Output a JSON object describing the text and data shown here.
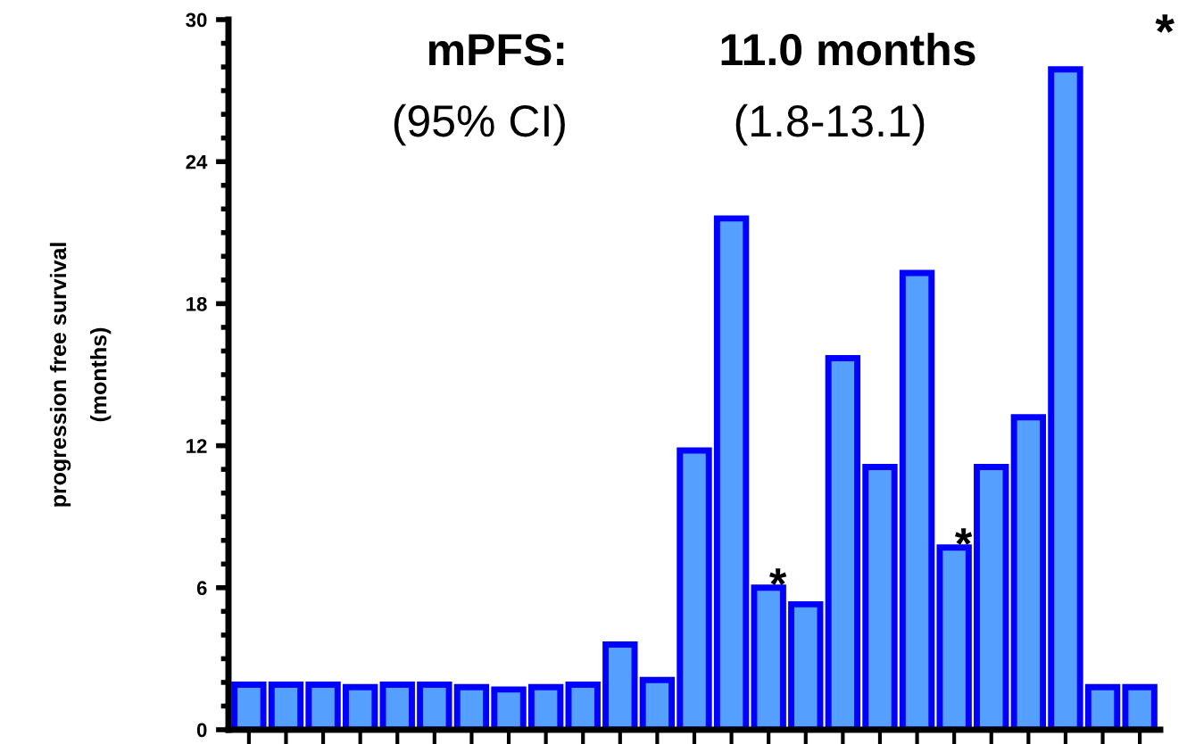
{
  "chart_data": {
    "type": "bar",
    "ylabel": "progression free survival\n(months)",
    "categories": [
      null,
      null,
      null,
      null,
      null,
      null,
      null,
      null,
      null,
      null,
      null,
      null,
      null,
      null,
      null,
      null,
      null,
      null,
      null,
      null,
      null,
      null,
      null,
      null,
      null
    ],
    "values": [
      1.9,
      1.9,
      1.9,
      1.8,
      1.9,
      1.9,
      1.8,
      1.7,
      1.8,
      1.9,
      3.6,
      2.1,
      11.8,
      21.6,
      6.0,
      5.3,
      15.7,
      11.1,
      19.3,
      7.7,
      11.1,
      13.2,
      27.9,
      1.8,
      1.8
    ],
    "value_labels": [
      null,
      null,
      null,
      null,
      null,
      null,
      null,
      null,
      null,
      null,
      null,
      null,
      null,
      null,
      "*",
      null,
      null,
      null,
      null,
      "*",
      null,
      null,
      null,
      null,
      null
    ],
    "color": "#55a0ff",
    "ylim": [
      0,
      30
    ],
    "yticks": [
      0,
      {
        "value": 1,
        "label": null
      },
      {
        "value": 2,
        "label": null
      },
      {
        "value": 3,
        "label": null
      },
      {
        "value": 4,
        "label": null
      },
      {
        "value": 5,
        "label": null
      },
      6,
      {
        "value": 7,
        "label": null
      },
      {
        "value": 8,
        "label": null
      },
      {
        "value": 9,
        "label": null
      },
      {
        "value": 10,
        "label": null
      },
      {
        "value": 11,
        "label": null
      },
      12,
      {
        "value": 13,
        "label": null
      },
      {
        "value": 14,
        "label": null
      },
      {
        "value": 15,
        "label": null
      },
      {
        "value": 16,
        "label": null
      },
      {
        "value": 17,
        "label": null
      },
      18,
      {
        "value": 19,
        "label": null
      },
      {
        "value": 20,
        "label": null
      },
      {
        "value": 21,
        "label": null
      },
      {
        "value": 22,
        "label": null
      },
      {
        "value": 23,
        "label": null
      },
      24,
      {
        "value": 25,
        "label": null
      },
      {
        "value": 26,
        "label": null
      },
      {
        "value": 27,
        "label": null
      },
      {
        "value": 28,
        "label": null
      },
      {
        "value": 29,
        "label": null
      },
      30
    ],
    "grid": false,
    "annotations": [
      "mPFS:",
      "11.0 months",
      "(95% CI)",
      "(1.8-13.1)",
      "*"
    ]
  }
}
